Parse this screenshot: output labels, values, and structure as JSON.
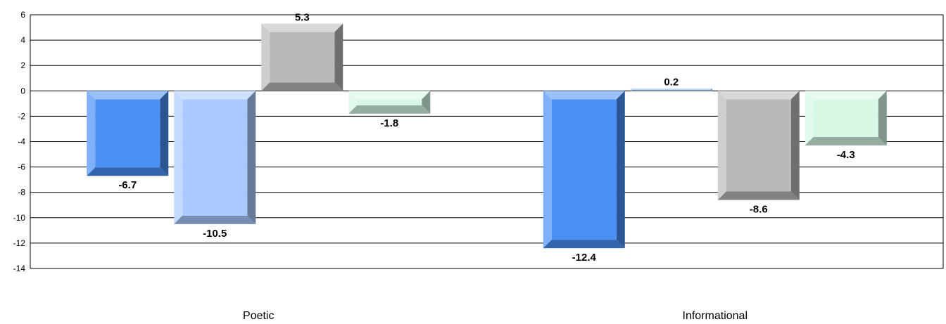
{
  "chart_data": {
    "type": "bar",
    "categories": [
      "Poetic",
      "Informational"
    ],
    "series": [
      {
        "values": [
          -6.7,
          -12.4
        ],
        "color": "#4a90f5"
      },
      {
        "values": [
          -10.5,
          0.2
        ],
        "color": "#a9c9ff"
      },
      {
        "values": [
          5.3,
          -8.6
        ],
        "color": "#b9b9b9"
      },
      {
        "values": [
          -1.8,
          -4.3
        ],
        "color": "#d6f8e4"
      }
    ],
    "data_labels": [
      [
        "-6.7",
        "-12.4"
      ],
      [
        "-10.5",
        "0.2"
      ],
      [
        "5.3",
        "-8.6"
      ],
      [
        "-1.8",
        "-4.3"
      ]
    ],
    "y_ticks": [
      6,
      4,
      2,
      0,
      -2,
      -4,
      -6,
      -8,
      -10,
      -12,
      -14
    ],
    "ylim": [
      -14,
      6
    ],
    "grid": true,
    "legend": "none"
  }
}
